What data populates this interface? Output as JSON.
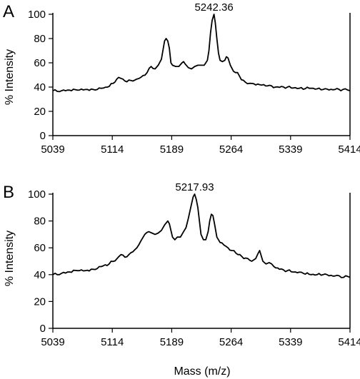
{
  "figure": {
    "shared_xlabel": "Mass (m/z)"
  },
  "chart_data": [
    {
      "type": "line",
      "panel": "A",
      "ylabel": "% Intensity",
      "xlim": [
        5039,
        5414
      ],
      "ylim": [
        0,
        100
      ],
      "xticks": [
        5039,
        5114,
        5189,
        5264,
        5339,
        5414
      ],
      "yticks": [
        0,
        20,
        40,
        60,
        80,
        100
      ],
      "annotation": {
        "text": "5242.36",
        "x": 5242.36,
        "y": 100
      },
      "series": [
        {
          "x": [
            5039,
            5050,
            5060,
            5070,
            5080,
            5090,
            5100,
            5108,
            5115,
            5122,
            5130,
            5140,
            5150,
            5158,
            5163,
            5168,
            5172,
            5176,
            5180,
            5182,
            5184,
            5186,
            5188,
            5190,
            5194,
            5198,
            5202,
            5204,
            5206,
            5210,
            5214,
            5218,
            5222,
            5226,
            5230,
            5234,
            5236,
            5238,
            5240,
            5242.36,
            5244,
            5246,
            5248,
            5250,
            5253,
            5256,
            5258,
            5260,
            5263,
            5267,
            5272,
            5277,
            5282,
            5290,
            5300,
            5310,
            5320,
            5335,
            5350,
            5365,
            5380,
            5395,
            5405,
            5414
          ],
          "y": [
            37,
            37,
            37.5,
            37.5,
            38,
            38,
            39,
            40,
            43,
            48,
            45,
            45,
            48,
            52,
            57,
            55,
            58,
            63,
            78,
            80,
            78,
            72,
            60,
            58,
            57,
            57,
            60,
            61,
            59,
            56,
            55,
            57,
            58,
            58,
            58,
            62,
            70,
            85,
            95,
            100,
            93,
            80,
            68,
            62,
            61,
            62,
            65,
            64,
            58,
            53,
            52,
            46,
            44,
            43,
            42,
            41,
            40,
            40,
            39,
            39,
            38,
            38,
            38,
            37
          ]
        }
      ]
    },
    {
      "type": "line",
      "panel": "B",
      "ylabel": "% Intensity",
      "xlim": [
        5039,
        5414
      ],
      "ylim": [
        0,
        100
      ],
      "xticks": [
        5039,
        5114,
        5189,
        5264,
        5339,
        5414
      ],
      "yticks": [
        0,
        20,
        40,
        60,
        80,
        100
      ],
      "annotation": {
        "text": "5217.93",
        "x": 5217.93,
        "y": 100
      },
      "series": [
        {
          "x": [
            5039,
            5050,
            5060,
            5070,
            5080,
            5090,
            5100,
            5110,
            5120,
            5125,
            5130,
            5135,
            5140,
            5145,
            5150,
            5155,
            5160,
            5164,
            5168,
            5172,
            5176,
            5180,
            5184,
            5186,
            5188,
            5190,
            5193,
            5196,
            5200,
            5204,
            5207,
            5210,
            5213,
            5216,
            5217.93,
            5220,
            5222,
            5224,
            5226,
            5229,
            5232,
            5235,
            5237,
            5239,
            5241,
            5243,
            5246,
            5250,
            5255,
            5260,
            5265,
            5270,
            5275,
            5280,
            5285,
            5290,
            5295,
            5300,
            5304,
            5308,
            5312,
            5318,
            5325,
            5335,
            5345,
            5355,
            5365,
            5380,
            5395,
            5414
          ],
          "y": [
            40,
            41,
            42,
            43,
            43,
            44,
            46,
            48,
            52,
            55,
            53,
            55,
            57,
            60,
            65,
            70,
            72,
            71,
            70,
            71,
            73,
            77,
            80,
            78,
            73,
            68,
            66,
            68,
            68,
            72,
            75,
            82,
            90,
            98,
            100,
            96,
            90,
            80,
            70,
            66,
            66,
            72,
            80,
            85,
            84,
            78,
            68,
            64,
            62,
            60,
            58,
            56,
            55,
            52,
            52,
            50,
            52,
            58,
            50,
            48,
            49,
            46,
            44,
            43,
            42,
            41,
            40,
            40,
            39,
            38
          ]
        }
      ]
    }
  ]
}
